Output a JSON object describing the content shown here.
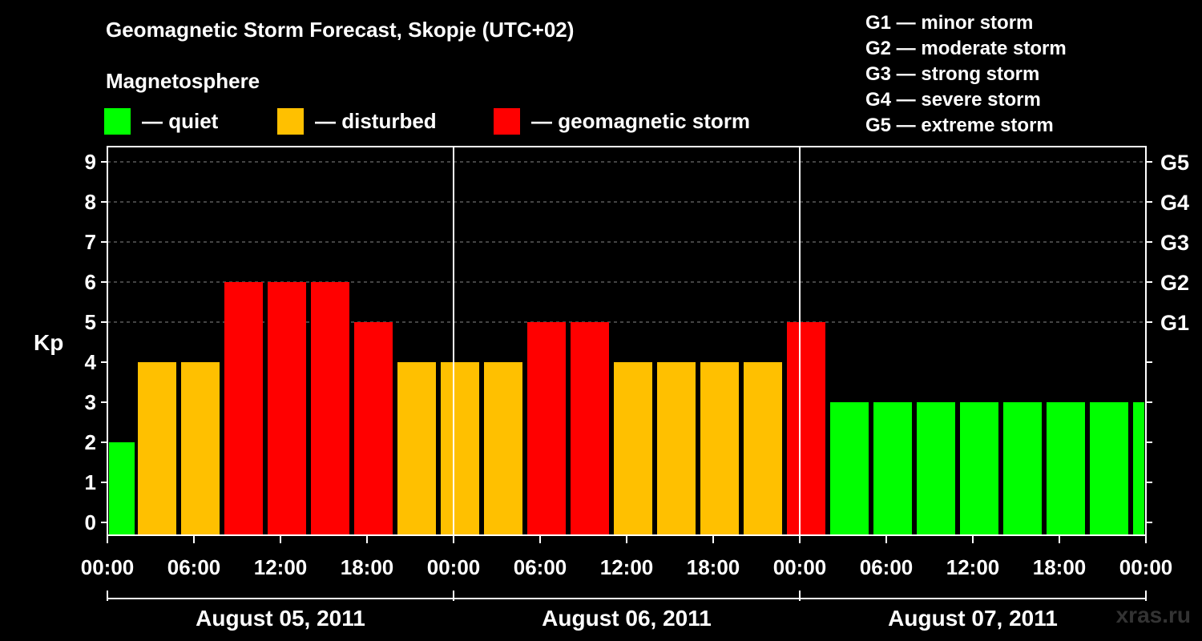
{
  "title": "Geomagnetic Storm Forecast, Skopje (UTC+02)",
  "subtitle": "Magnetosphere",
  "legend": [
    {
      "label": "— quiet",
      "color": "#00ff00"
    },
    {
      "label": "— disturbed",
      "color": "#ffc000"
    },
    {
      "label": "— geomagnetic storm",
      "color": "#ff0000"
    }
  ],
  "storm_levels": [
    "G1 — minor storm",
    "G2 — moderate storm",
    "G3 — strong storm",
    "G4 — severe storm",
    "G5 — extreme storm"
  ],
  "brand": "xras.ru",
  "colors": {
    "quiet": "#00ff00",
    "disturbed": "#ffc000",
    "storm": "#ff0000",
    "background": "#000000",
    "axis": "#ffffff",
    "grid": "#888888"
  },
  "chart_data": {
    "type": "bar",
    "title": "Geomagnetic Storm Forecast, Skopje (UTC+02)",
    "ylabel": "Kp",
    "ylim": [
      0,
      9
    ],
    "yticks": [
      "0",
      "1",
      "2",
      "3",
      "4",
      "5",
      "6",
      "7",
      "8",
      "9"
    ],
    "right_ticks": [
      {
        "value": 5,
        "label": "G1"
      },
      {
        "value": 6,
        "label": "G2"
      },
      {
        "value": 7,
        "label": "G3"
      },
      {
        "value": 8,
        "label": "G4"
      },
      {
        "value": 9,
        "label": "G5"
      }
    ],
    "grid": "dashed horizontal at Kp 5-9",
    "x_tick_labels": [
      "00:00",
      "06:00",
      "12:00",
      "18:00",
      "00:00",
      "06:00",
      "12:00",
      "18:00",
      "00:00",
      "06:00",
      "12:00",
      "18:00",
      "00:00"
    ],
    "days": [
      "August 05, 2011",
      "August 06, 2011",
      "August 07, 2011"
    ],
    "bars": [
      {
        "start": "2011-08-05 00:00",
        "kp": 2,
        "level": "quiet"
      },
      {
        "start": "2011-08-05 02:00",
        "kp": 4,
        "level": "disturbed"
      },
      {
        "start": "2011-08-05 05:00",
        "kp": 4,
        "level": "disturbed"
      },
      {
        "start": "2011-08-05 08:00",
        "kp": 6,
        "level": "storm"
      },
      {
        "start": "2011-08-05 11:00",
        "kp": 6,
        "level": "storm"
      },
      {
        "start": "2011-08-05 14:00",
        "kp": 6,
        "level": "storm"
      },
      {
        "start": "2011-08-05 17:00",
        "kp": 5,
        "level": "storm"
      },
      {
        "start": "2011-08-05 20:00",
        "kp": 4,
        "level": "disturbed"
      },
      {
        "start": "2011-08-05 23:00",
        "kp": 4,
        "level": "disturbed"
      },
      {
        "start": "2011-08-06 02:00",
        "kp": 4,
        "level": "disturbed"
      },
      {
        "start": "2011-08-06 05:00",
        "kp": 5,
        "level": "storm"
      },
      {
        "start": "2011-08-06 08:00",
        "kp": 5,
        "level": "storm"
      },
      {
        "start": "2011-08-06 11:00",
        "kp": 4,
        "level": "disturbed"
      },
      {
        "start": "2011-08-06 14:00",
        "kp": 4,
        "level": "disturbed"
      },
      {
        "start": "2011-08-06 17:00",
        "kp": 4,
        "level": "disturbed"
      },
      {
        "start": "2011-08-06 20:00",
        "kp": 4,
        "level": "disturbed"
      },
      {
        "start": "2011-08-06 23:00",
        "kp": 5,
        "level": "storm"
      },
      {
        "start": "2011-08-07 02:00",
        "kp": 3,
        "level": "quiet"
      },
      {
        "start": "2011-08-07 05:00",
        "kp": 3,
        "level": "quiet"
      },
      {
        "start": "2011-08-07 08:00",
        "kp": 3,
        "level": "quiet"
      },
      {
        "start": "2011-08-07 11:00",
        "kp": 3,
        "level": "quiet"
      },
      {
        "start": "2011-08-07 14:00",
        "kp": 3,
        "level": "quiet"
      },
      {
        "start": "2011-08-07 17:00",
        "kp": 3,
        "level": "quiet"
      },
      {
        "start": "2011-08-07 20:00",
        "kp": 3,
        "level": "quiet"
      },
      {
        "start": "2011-08-07 23:00",
        "kp": 3,
        "level": "quiet"
      }
    ]
  }
}
